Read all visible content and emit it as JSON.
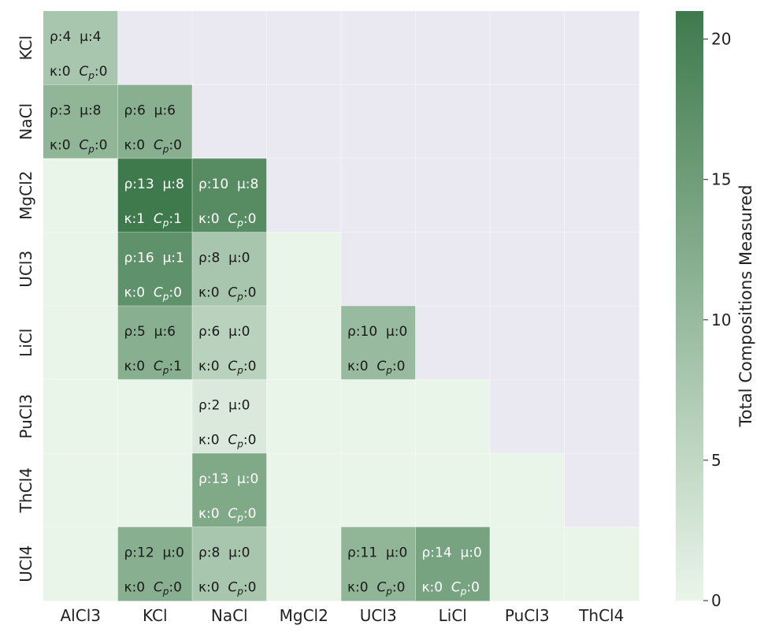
{
  "chart_data": {
    "type": "heatmap",
    "title": "",
    "x_categories": [
      "AlCl3",
      "KCl",
      "NaCl",
      "MgCl2",
      "UCl3",
      "LiCl",
      "PuCl3",
      "ThCl4"
    ],
    "y_categories": [
      "KCl",
      "NaCl",
      "MgCl2",
      "UCl3",
      "LiCl",
      "PuCl3",
      "ThCl4",
      "UCl4"
    ],
    "colorbar": {
      "label": "Total Compositions Measured",
      "min": 0,
      "max": 21,
      "ticks": [
        0,
        5,
        10,
        15,
        20
      ],
      "color_low": "#eaf5ea",
      "color_high": "#3e7a4c"
    },
    "masked_color": "#eae9f2",
    "metric_symbols": {
      "rho": "ρ",
      "mu": "μ",
      "kappa": "κ",
      "cp": "C",
      "cp_sub": "p"
    },
    "cells": [
      {
        "row": "KCl",
        "col": "AlCl3",
        "rho": 4,
        "mu": 4,
        "kappa": 0,
        "cp": 0,
        "total": 8
      },
      {
        "row": "NaCl",
        "col": "AlCl3",
        "rho": 3,
        "mu": 8,
        "kappa": 0,
        "cp": 0,
        "total": 11
      },
      {
        "row": "NaCl",
        "col": "KCl",
        "rho": 6,
        "mu": 6,
        "kappa": 0,
        "cp": 0,
        "total": 12
      },
      {
        "row": "MgCl2",
        "col": "KCl",
        "rho": 13,
        "mu": 8,
        "kappa": 1,
        "cp": 1,
        "total": 23
      },
      {
        "row": "MgCl2",
        "col": "NaCl",
        "rho": 10,
        "mu": 8,
        "kappa": 0,
        "cp": 0,
        "total": 18
      },
      {
        "row": "UCl3",
        "col": "KCl",
        "rho": 16,
        "mu": 1,
        "kappa": 0,
        "cp": 0,
        "total": 17
      },
      {
        "row": "UCl3",
        "col": "NaCl",
        "rho": 8,
        "mu": 0,
        "kappa": 0,
        "cp": 0,
        "total": 8
      },
      {
        "row": "LiCl",
        "col": "KCl",
        "rho": 5,
        "mu": 6,
        "kappa": 0,
        "cp": 1,
        "total": 12
      },
      {
        "row": "LiCl",
        "col": "NaCl",
        "rho": 6,
        "mu": 0,
        "kappa": 0,
        "cp": 0,
        "total": 6
      },
      {
        "row": "LiCl",
        "col": "UCl3",
        "rho": 10,
        "mu": 0,
        "kappa": 0,
        "cp": 0,
        "total": 10
      },
      {
        "row": "PuCl3",
        "col": "NaCl",
        "rho": 2,
        "mu": 0,
        "kappa": 0,
        "cp": 0,
        "total": 2
      },
      {
        "row": "ThCl4",
        "col": "NaCl",
        "rho": 13,
        "mu": 0,
        "kappa": 0,
        "cp": 0,
        "total": 13
      },
      {
        "row": "UCl4",
        "col": "KCl",
        "rho": 12,
        "mu": 0,
        "kappa": 0,
        "cp": 0,
        "total": 12
      },
      {
        "row": "UCl4",
        "col": "NaCl",
        "rho": 8,
        "mu": 0,
        "kappa": 0,
        "cp": 0,
        "total": 8
      },
      {
        "row": "UCl4",
        "col": "UCl3",
        "rho": 11,
        "mu": 0,
        "kappa": 0,
        "cp": 0,
        "total": 11
      },
      {
        "row": "UCl4",
        "col": "LiCl",
        "rho": 14,
        "mu": 0,
        "kappa": 0,
        "cp": 0,
        "total": 14
      }
    ]
  }
}
